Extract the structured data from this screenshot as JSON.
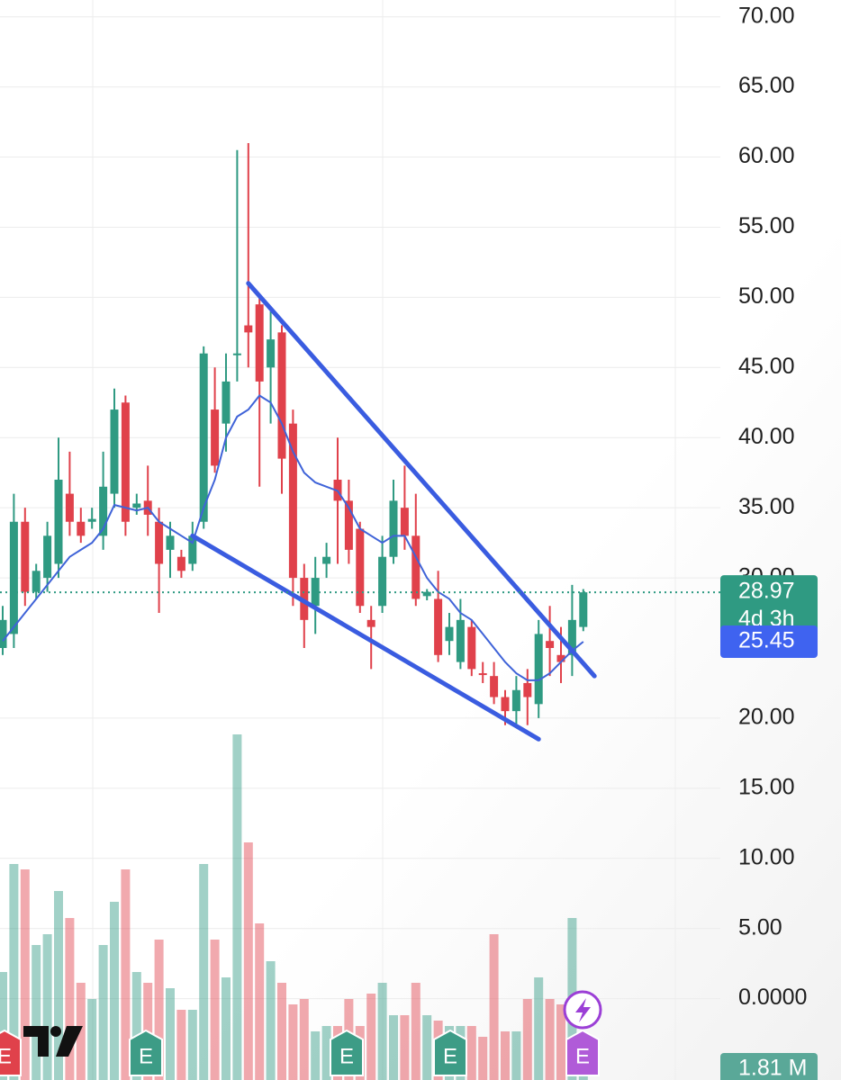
{
  "chart_data": {
    "type": "candlestick",
    "ylim": [
      -5.8,
      71.2
    ],
    "yticks": [
      {
        "value": 70,
        "label": "70.00"
      },
      {
        "value": 65,
        "label": "65.00"
      },
      {
        "value": 60,
        "label": "60.00"
      },
      {
        "value": 55,
        "label": "55.00"
      },
      {
        "value": 50,
        "label": "50.00"
      },
      {
        "value": 45,
        "label": "45.00"
      },
      {
        "value": 40,
        "label": "40.00"
      },
      {
        "value": 35,
        "label": "35.00"
      },
      {
        "value": 30,
        "label": "30.00"
      },
      {
        "value": 20,
        "label": "20.00"
      },
      {
        "value": 15,
        "label": "15.00"
      },
      {
        "value": 10,
        "label": "10.00"
      },
      {
        "value": 5,
        "label": "5.00"
      },
      {
        "value": 0,
        "label": "0.0000"
      }
    ],
    "grid": true,
    "up_color": "#2f9a82",
    "down_color": "#e0414b",
    "open": [
      25,
      26,
      34,
      29,
      30,
      31,
      36,
      34,
      34,
      33,
      36,
      42.5,
      35,
      35.5,
      34,
      32,
      31.5,
      31,
      34,
      42,
      41,
      46,
      48,
      49.5,
      45,
      47.5,
      41,
      30,
      28,
      31,
      37,
      35.5,
      33.5,
      27,
      28,
      31.5,
      35,
      33,
      28.7,
      28.5,
      25.5,
      24,
      26.5,
      23.2,
      23,
      21.5,
      20.5,
      22.5,
      21,
      25.5,
      24.5,
      24.5,
      26.5
    ],
    "high": [
      28,
      36,
      35,
      31,
      34,
      40,
      39,
      35,
      35,
      39,
      43.5,
      43,
      36,
      38,
      35,
      34,
      32,
      34,
      46.5,
      45,
      46,
      60.5,
      61,
      50,
      49,
      48,
      42,
      31,
      31.5,
      32.5,
      40,
      37,
      34,
      28,
      33,
      37,
      38,
      36,
      29.2,
      30.5,
      27.5,
      28.5,
      27,
      24,
      24,
      22,
      23,
      23.5,
      27,
      28,
      26.5,
      29.5,
      29.2
    ],
    "low": [
      24.5,
      25,
      28,
      28.5,
      29,
      30,
      33,
      32.5,
      33.5,
      32,
      35,
      33,
      34.5,
      33,
      27.5,
      30,
      30,
      30.5,
      33.5,
      37.5,
      39,
      44,
      45,
      36.5,
      41,
      36,
      28,
      25,
      26,
      30,
      31,
      31,
      27.5,
      23.5,
      27.5,
      31,
      32,
      28,
      28.4,
      24,
      24.5,
      23.5,
      23,
      22.5,
      21,
      19.5,
      19.5,
      19.5,
      20,
      23,
      22.5,
      23,
      26.2
    ],
    "close": [
      27,
      34,
      29,
      30.5,
      33,
      37,
      34,
      33,
      34.2,
      36.5,
      42,
      34,
      35.3,
      34.5,
      31,
      33,
      30.5,
      33,
      46,
      38,
      44,
      46,
      47.5,
      44,
      47,
      38.5,
      30,
      27,
      30,
      31.5,
      35.5,
      32,
      28,
      26.5,
      31.5,
      35.5,
      33,
      28.5,
      29,
      24.5,
      26.5,
      27,
      23.5,
      23.1,
      21.5,
      20.5,
      22,
      21.5,
      26,
      25,
      24,
      27,
      28.97
    ],
    "ma": {
      "color": "#3f63d8",
      "values": [
        25.5,
        26.5,
        27.5,
        28.5,
        29.5,
        30.5,
        31.5,
        32,
        32.5,
        33.5,
        35.2,
        35,
        34.8,
        35,
        34,
        33.5,
        33,
        32.5,
        35,
        37,
        40,
        41.5,
        42,
        43,
        42.5,
        41,
        39,
        37.5,
        36.8,
        36.5,
        36.2,
        35,
        33.5,
        33,
        32.5,
        33,
        33,
        31.5,
        30,
        29,
        28.5,
        27.5,
        27,
        26,
        25,
        24,
        23.2,
        22.7,
        22.7,
        23.2,
        24,
        24.8,
        25.45
      ]
    },
    "volume": {
      "ylim": [
        0,
        6.5
      ],
      "values": [
        2.0,
        4.0,
        3.9,
        2.5,
        2.7,
        3.5,
        3.0,
        1.8,
        1.5,
        2.5,
        3.3,
        3.9,
        2.0,
        1.8,
        2.6,
        1.7,
        1.3,
        1.3,
        4.0,
        2.6,
        1.9,
        6.4,
        4.4,
        2.9,
        2.2,
        1.8,
        1.4,
        1.5,
        0.9,
        1.0,
        1.0,
        1.5,
        1.0,
        1.6,
        1.8,
        1.2,
        1.2,
        1.8,
        1.2,
        1.1,
        1.0,
        1.0,
        1.0,
        0.8,
        2.7,
        0.9,
        0.9,
        1.5,
        1.9,
        1.5,
        1.4,
        3.0,
        0.7
      ]
    },
    "trend_lines": [
      {
        "color": "#3a5ce0",
        "x": [
          22,
          53
        ],
        "y": [
          51,
          23
        ]
      },
      {
        "color": "#3a5ce0",
        "x": [
          17,
          48
        ],
        "y": [
          33,
          18.5
        ]
      }
    ],
    "last_price": 28.97,
    "countdown": "4d 3h",
    "ma_last": 25.45,
    "volume_label": "1.81 M"
  }
}
